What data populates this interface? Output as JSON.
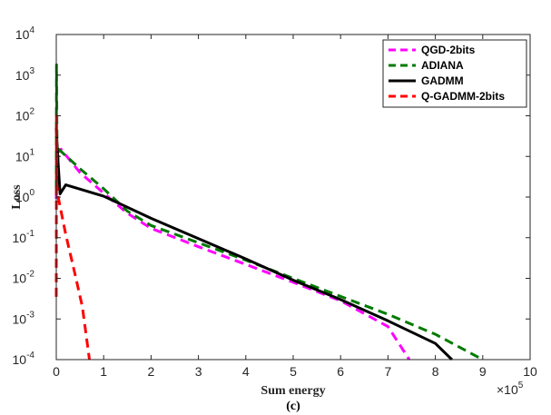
{
  "chart_data": {
    "type": "line",
    "title": "",
    "caption": "(c)",
    "xlabel": "Sum energy",
    "ylabel": "Loss",
    "x_multiplier_label": "×10",
    "x_multiplier_exp": "5",
    "xlim": [
      0,
      10
    ],
    "ylim": [
      0.0001,
      10000
    ],
    "yscale": "log",
    "x_ticks": [
      0,
      1,
      2,
      3,
      4,
      5,
      6,
      7,
      8,
      9,
      10
    ],
    "y_ticks": [
      {
        "base": "10",
        "exp": "-4",
        "value": 0.0001
      },
      {
        "base": "10",
        "exp": "-3",
        "value": 0.001
      },
      {
        "base": "10",
        "exp": "-2",
        "value": 0.01
      },
      {
        "base": "10",
        "exp": "-1",
        "value": 0.1
      },
      {
        "base": "10",
        "exp": "0",
        "value": 1
      },
      {
        "base": "10",
        "exp": "1",
        "value": 10
      },
      {
        "base": "10",
        "exp": "2",
        "value": 100
      },
      {
        "base": "10",
        "exp": "3",
        "value": 1000
      },
      {
        "base": "10",
        "exp": "4",
        "value": 10000
      }
    ],
    "grid": false,
    "legend_position": "top-right",
    "series": [
      {
        "name": "QGD-2bits",
        "color": "#ff00ff",
        "dash": "dashed",
        "points": [
          [
            0.0,
            0.9
          ],
          [
            0.02,
            12
          ],
          [
            0.1,
            15
          ],
          [
            0.5,
            4
          ],
          [
            1.0,
            1.25
          ],
          [
            1.5,
            0.4
          ],
          [
            2.0,
            0.17
          ],
          [
            3.0,
            0.06
          ],
          [
            4.0,
            0.022
          ],
          [
            5.0,
            0.008
          ],
          [
            6.0,
            0.0028
          ],
          [
            7.0,
            0.00065
          ],
          [
            7.45,
            0.0001
          ]
        ]
      },
      {
        "name": "ADIANA",
        "color": "#007a00",
        "dash": "dashed",
        "points": [
          [
            0.0,
            1.6
          ],
          [
            0.005,
            1800
          ],
          [
            0.02,
            5
          ],
          [
            0.05,
            15
          ],
          [
            0.5,
            5
          ],
          [
            1.0,
            1.6
          ],
          [
            1.5,
            0.45
          ],
          [
            2.0,
            0.2
          ],
          [
            3.0,
            0.075
          ],
          [
            4.0,
            0.028
          ],
          [
            5.0,
            0.01
          ],
          [
            6.0,
            0.0036
          ],
          [
            7.0,
            0.0013
          ],
          [
            8.0,
            0.00042
          ],
          [
            9.0,
            0.0001
          ]
        ]
      },
      {
        "name": "GADMM",
        "color": "#000000",
        "dash": "solid",
        "points": [
          [
            0.0,
            50
          ],
          [
            0.03,
            10
          ],
          [
            0.08,
            1.2
          ],
          [
            0.2,
            2.0
          ],
          [
            1.0,
            1.05
          ],
          [
            2.0,
            0.3
          ],
          [
            3.0,
            0.095
          ],
          [
            4.0,
            0.03
          ],
          [
            5.0,
            0.009
          ],
          [
            6.0,
            0.003
          ],
          [
            7.0,
            0.0009
          ],
          [
            8.0,
            0.00025
          ],
          [
            8.35,
            0.0001
          ]
        ]
      },
      {
        "name": "Q-GADMM-2bits",
        "color": "#ff0000",
        "dash": "dashed",
        "points": [
          [
            0.0,
            0.0035
          ],
          [
            0.005,
            100
          ],
          [
            0.01,
            2.0
          ],
          [
            0.04,
            1.0
          ],
          [
            0.2,
            0.12
          ],
          [
            0.4,
            0.012
          ],
          [
            0.55,
            0.002
          ],
          [
            0.7,
            0.0001
          ]
        ]
      }
    ]
  }
}
